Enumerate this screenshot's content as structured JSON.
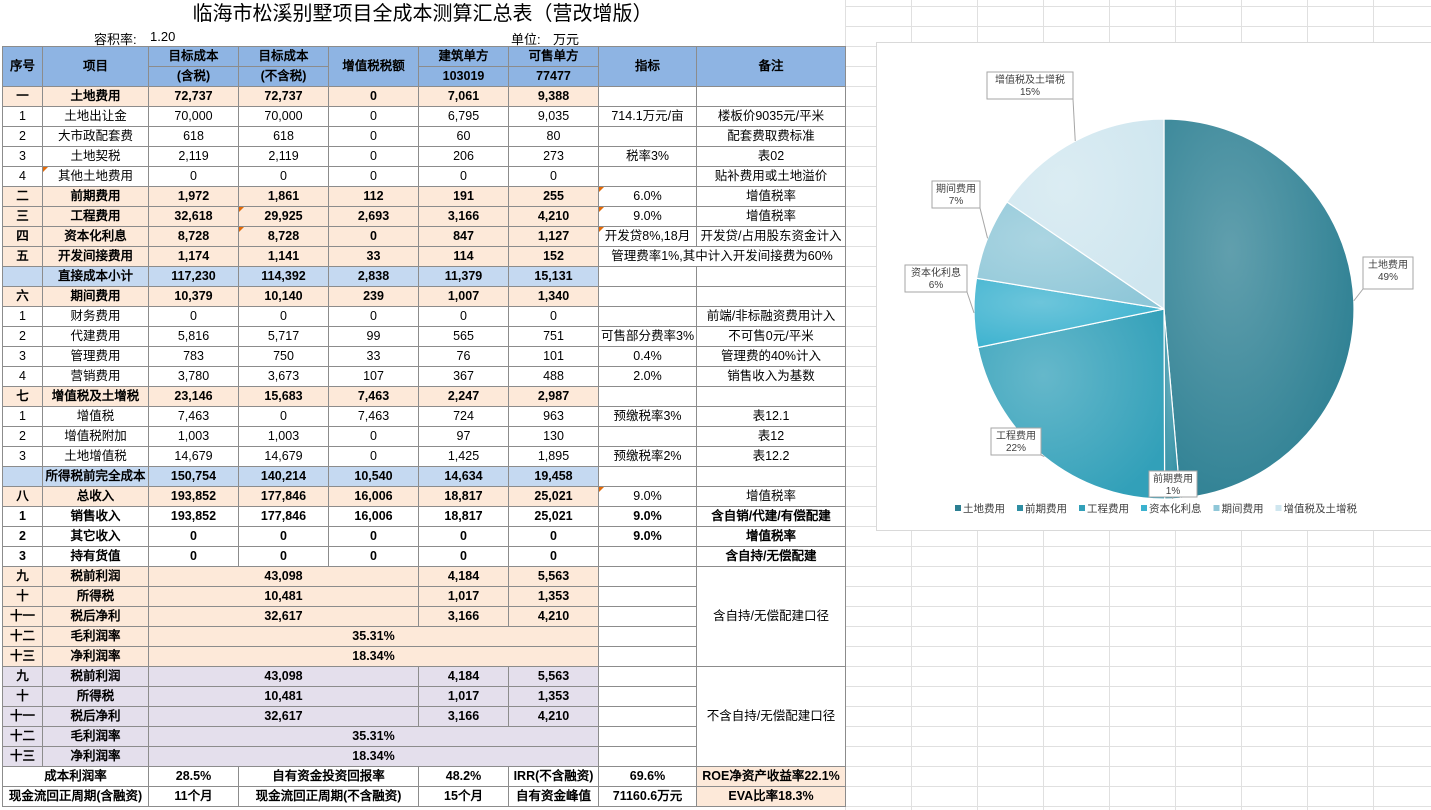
{
  "title": "临海市松溪别墅项目全成本测算汇总表（营改增版）",
  "far_label": "容积率:",
  "far_value": "1.20",
  "unit_label": "单位:",
  "unit_value": "万元",
  "header": {
    "seq": "序号",
    "item": "项目",
    "c1a": "目标成本",
    "c1b": "(含税)",
    "c2a": "目标成本",
    "c2b": "(不含税)",
    "c3": "增值税税额",
    "c4a": "建筑单方",
    "c4b": "103019",
    "c5a": "可售单方",
    "c5b": "77477",
    "c6": "指标",
    "c7": "备注"
  },
  "rows": [
    {
      "seq": "一",
      "item": "土地费用",
      "c1": "72,737",
      "c2": "72,737",
      "c3": "0",
      "c4": "7,061",
      "c5": "9,388",
      "c6": "",
      "c7": "",
      "style": "sec"
    },
    {
      "seq": "1",
      "item": "土地出让金",
      "c1": "70,000",
      "c2": "70,000",
      "c3": "0",
      "c4": "6,795",
      "c5": "9,035",
      "c6": "714.1万元/亩",
      "c7": "楼板价9035元/平米",
      "style": ""
    },
    {
      "seq": "2",
      "item": "大市政配套费",
      "c1": "618",
      "c2": "618",
      "c3": "0",
      "c4": "60",
      "c5": "80",
      "c6": "",
      "c7": "配套费取费标准",
      "style": ""
    },
    {
      "seq": "3",
      "item": "土地契税",
      "c1": "2,119",
      "c2": "2,119",
      "c3": "0",
      "c4": "206",
      "c5": "273",
      "c6": "税率3%",
      "c7": "表02",
      "style": ""
    },
    {
      "seq": "4",
      "item": "其他土地费用",
      "c1": "0",
      "c2": "0",
      "c3": "0",
      "c4": "0",
      "c5": "0",
      "c6": "",
      "c7": "贴补费用或土地溢价",
      "style": ""
    },
    {
      "seq": "二",
      "item": "前期费用",
      "c1": "1,972",
      "c2": "1,861",
      "c3": "112",
      "c4": "191",
      "c5": "255",
      "c6": "6.0%",
      "c7": "增值税率",
      "style": "sec"
    },
    {
      "seq": "三",
      "item": "工程费用",
      "c1": "32,618",
      "c2": "29,925",
      "c3": "2,693",
      "c4": "3,166",
      "c5": "4,210",
      "c6": "9.0%",
      "c7": "增值税率",
      "style": "sec"
    },
    {
      "seq": "四",
      "item": "资本化利息",
      "c1": "8,728",
      "c2": "8,728",
      "c3": "0",
      "c4": "847",
      "c5": "1,127",
      "c6": "开发贷8%,18月",
      "c7": "开发贷/占用股东资金计入",
      "style": "sec"
    },
    {
      "seq": "五",
      "item": "开发间接费用",
      "c1": "1,174",
      "c2": "1,141",
      "c3": "33",
      "c4": "114",
      "c5": "152",
      "c6": "管理费率1%,其中计入开发间接费为60%",
      "c7": "",
      "style": "sec"
    },
    {
      "seq": "",
      "item": "直接成本小计",
      "c1": "117,230",
      "c2": "114,392",
      "c3": "2,838",
      "c4": "11,379",
      "c5": "15,131",
      "c6": "",
      "c7": "",
      "style": "sum"
    },
    {
      "seq": "六",
      "item": "期间费用",
      "c1": "10,379",
      "c2": "10,140",
      "c3": "239",
      "c4": "1,007",
      "c5": "1,340",
      "c6": "",
      "c7": "",
      "style": "sec"
    },
    {
      "seq": "1",
      "item": "财务费用",
      "c1": "0",
      "c2": "0",
      "c3": "0",
      "c4": "0",
      "c5": "0",
      "c6": "",
      "c7": "前端/非标融资费用计入",
      "style": ""
    },
    {
      "seq": "2",
      "item": "代建费用",
      "c1": "5,816",
      "c2": "5,717",
      "c3": "99",
      "c4": "565",
      "c5": "751",
      "c6": "可售部分费率3%",
      "c7": "不可售0元/平米",
      "style": ""
    },
    {
      "seq": "3",
      "item": "管理费用",
      "c1": "783",
      "c2": "750",
      "c3": "33",
      "c4": "76",
      "c5": "101",
      "c6": "0.4%",
      "c7": "管理费的40%计入",
      "style": ""
    },
    {
      "seq": "4",
      "item": "营销费用",
      "c1": "3,780",
      "c2": "3,673",
      "c3": "107",
      "c4": "367",
      "c5": "488",
      "c6": "2.0%",
      "c7": "销售收入为基数",
      "style": ""
    },
    {
      "seq": "七",
      "item": "增值税及土增税",
      "c1": "23,146",
      "c2": "15,683",
      "c3": "7,463",
      "c4": "2,247",
      "c5": "2,987",
      "c6": "",
      "c7": "",
      "style": "sec"
    },
    {
      "seq": "1",
      "item": "增值税",
      "c1": "7,463",
      "c2": "0",
      "c3": "7,463",
      "c4": "724",
      "c5": "963",
      "c6": "预缴税率3%",
      "c7": "表12.1",
      "style": ""
    },
    {
      "seq": "2",
      "item": "增值税附加",
      "c1": "1,003",
      "c2": "1,003",
      "c3": "0",
      "c4": "97",
      "c5": "130",
      "c6": "",
      "c7": "表12",
      "style": ""
    },
    {
      "seq": "3",
      "item": "土地增值税",
      "c1": "14,679",
      "c2": "14,679",
      "c3": "0",
      "c4": "1,425",
      "c5": "1,895",
      "c6": "预缴税率2%",
      "c7": "表12.2",
      "style": ""
    },
    {
      "seq": "",
      "item": "所得税前完全成本",
      "c1": "150,754",
      "c2": "140,214",
      "c3": "10,540",
      "c4": "14,634",
      "c5": "19,458",
      "c6": "",
      "c7": "",
      "style": "sum"
    },
    {
      "seq": "八",
      "item": "总收入",
      "c1": "193,852",
      "c2": "177,846",
      "c3": "16,006",
      "c4": "18,817",
      "c5": "25,021",
      "c6": "9.0%",
      "c7": "增值税率",
      "style": "sec"
    },
    {
      "seq": "1",
      "item": "销售收入",
      "c1": "193,852",
      "c2": "177,846",
      "c3": "16,006",
      "c4": "18,817",
      "c5": "25,021",
      "c6": "9.0%",
      "c7": "含自销/代建/有偿配建",
      "style": "bold"
    },
    {
      "seq": "2",
      "item": "其它收入",
      "c1": "0",
      "c2": "0",
      "c3": "0",
      "c4": "0",
      "c5": "0",
      "c6": "9.0%",
      "c7": "增值税率",
      "style": "bold"
    },
    {
      "seq": "3",
      "item": "持有货值",
      "c1": "0",
      "c2": "0",
      "c3": "0",
      "c4": "0",
      "c5": "0",
      "c6": "",
      "c7": "含自持/无偿配建",
      "style": "bold"
    }
  ],
  "profit_a": {
    "rows": [
      {
        "seq": "九",
        "item": "税前利润",
        "val": "43,098",
        "c4": "4,184",
        "c5": "5,563"
      },
      {
        "seq": "十",
        "item": "所得税",
        "val": "10,481",
        "c4": "1,017",
        "c5": "1,353"
      },
      {
        "seq": "十一",
        "item": "税后净利",
        "val": "32,617",
        "c4": "3,166",
        "c5": "4,210"
      }
    ],
    "ratios": [
      {
        "seq": "十二",
        "item": "毛利润率",
        "val": "35.31%"
      },
      {
        "seq": "十三",
        "item": "净利润率",
        "val": "18.34%"
      }
    ],
    "note": "含自持/无偿配建口径"
  },
  "profit_b": {
    "rows": [
      {
        "seq": "九",
        "item": "税前利润",
        "val": "43,098",
        "c4": "4,184",
        "c5": "5,563"
      },
      {
        "seq": "十",
        "item": "所得税",
        "val": "10,481",
        "c4": "1,017",
        "c5": "1,353"
      },
      {
        "seq": "十一",
        "item": "税后净利",
        "val": "32,617",
        "c4": "3,166",
        "c5": "4,210"
      }
    ],
    "ratios": [
      {
        "seq": "十二",
        "item": "毛利润率",
        "val": "35.31%"
      },
      {
        "seq": "十三",
        "item": "净利润率",
        "val": "18.34%"
      }
    ],
    "note": "不含自持/无偿配建口径"
  },
  "summary": {
    "r1": [
      "成本利润率",
      "28.5%",
      "自有资金投资回报率",
      "48.2%",
      "IRR(不含融资)",
      "69.6%",
      "ROE净资产收益率22.1%"
    ],
    "r2": [
      "现金流回正周期(含融资)",
      "11个月",
      "现金流回正周期(不含融资)",
      "15个月",
      "自有资金峰值",
      "71160.6万元",
      "EVA比率18.3%"
    ]
  },
  "chart_data": {
    "type": "pie",
    "categories": [
      "土地费用",
      "前期费用",
      "工程费用",
      "资本化利息",
      "期间费用",
      "增值税及土增税"
    ],
    "values": [
      72737,
      1972,
      32618,
      8728,
      10379,
      23146
    ],
    "percent_labels": [
      "49%",
      "1%",
      "22%",
      "6%",
      "7%",
      "15%"
    ],
    "colors": [
      "#2c7f92",
      "#2e8ea3",
      "#32a0b9",
      "#3cb2cf",
      "#8fc7d8",
      "#cfe6ef"
    ],
    "legend_position": "bottom"
  }
}
